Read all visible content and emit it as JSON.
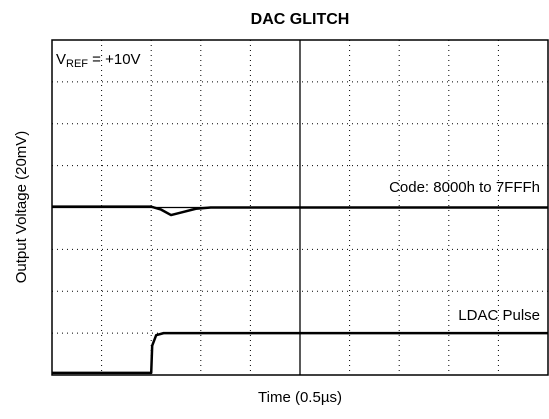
{
  "chart_data": {
    "type": "line",
    "title": "DAC GLITCH",
    "x_label": "Time (0.5µs)",
    "y_label": "Output Voltage (20mV)",
    "vref_label": {
      "base": "V",
      "sub": "REF",
      "text": " = +10V"
    },
    "series": [
      {
        "name": "Code: 8000h to 7FFFh",
        "color": "#000000",
        "x": [
          0,
          2,
          2.2,
          2.4,
          2.6,
          2.9,
          3.2,
          10
        ],
        "values": [
          0.02,
          0.02,
          -0.05,
          -0.18,
          -0.12,
          -0.03,
          0,
          0
        ]
      },
      {
        "name": "LDAC Pulse",
        "color": "#000000",
        "x": [
          0,
          2,
          2.02,
          2.1,
          2.25,
          10
        ],
        "values": [
          -3.95,
          -3.95,
          -3.3,
          -3.05,
          -3,
          -3
        ]
      }
    ],
    "xlim": [
      0,
      10
    ],
    "ylim": [
      -4,
      4
    ],
    "xticks": [
      0,
      1,
      2,
      3,
      4,
      5,
      6,
      7,
      8,
      9,
      10
    ],
    "yticks": [
      -4,
      -3,
      -2,
      -1,
      0,
      1,
      2,
      3,
      4
    ],
    "grid": true
  }
}
